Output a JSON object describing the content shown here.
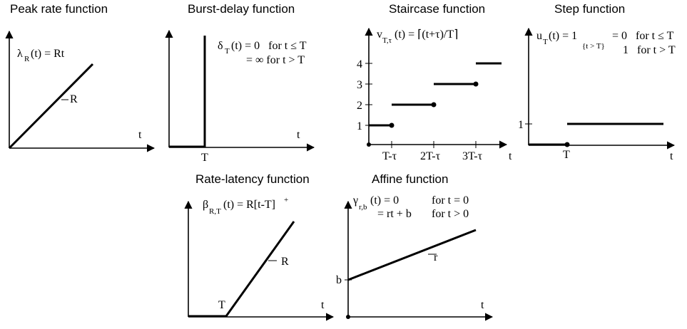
{
  "panels": {
    "peak": {
      "title": "Peak rate function",
      "fn_symbol": "λ",
      "fn_sub": "R",
      "fn_rhs": "(t) = Rt",
      "slope_label": "R",
      "axis_t": "t"
    },
    "burst": {
      "title": "Burst-delay function",
      "fn_symbol": "δ",
      "fn_sub": "T",
      "line1_rhs": "(t) = 0   for t ≤ T",
      "line2": "= ∞ for t > T",
      "axis_t": "t",
      "tick_T": "T"
    },
    "staircase": {
      "title": "Staircase function",
      "fn_symbol": "v",
      "fn_sub": "T,τ",
      "fn_rhs": "(t) = ⌈(t+τ)/T⌉",
      "ytick_1": "1",
      "ytick_2": "2",
      "ytick_3": "3",
      "ytick_4": "4",
      "xtick_1": "T-τ",
      "xtick_2": "2T-τ",
      "xtick_3": "3T-τ",
      "axis_t": "t"
    },
    "step": {
      "title": "Step function",
      "fn_symbol": "u",
      "fn_sub": "T",
      "fn_rhs": "(t) = 1",
      "indicator": "{t > T}",
      "case1": "= 0   for t ≤ T",
      "case2": "1   for t > T",
      "ytick_1": "1",
      "tick_T": "T",
      "axis_t": "t"
    },
    "ratelatency": {
      "title": "Rate-latency function",
      "fn_symbol": "β",
      "fn_sub": "R,T",
      "fn_rhs": "(t) = R[t-T]",
      "sup": "+",
      "slope_label": "R",
      "tick_T": "T",
      "axis_t": "t"
    },
    "affine": {
      "title": "Affine function",
      "fn_symbol": "γ",
      "fn_sub": "r,b",
      "line1_rhs": "(t) = 0",
      "line1_cond": "for t = 0",
      "line2": "= rt + b",
      "line2_cond": "for t > 0",
      "intercept_label": "b",
      "slope_label": "r",
      "axis_t": "t"
    }
  }
}
